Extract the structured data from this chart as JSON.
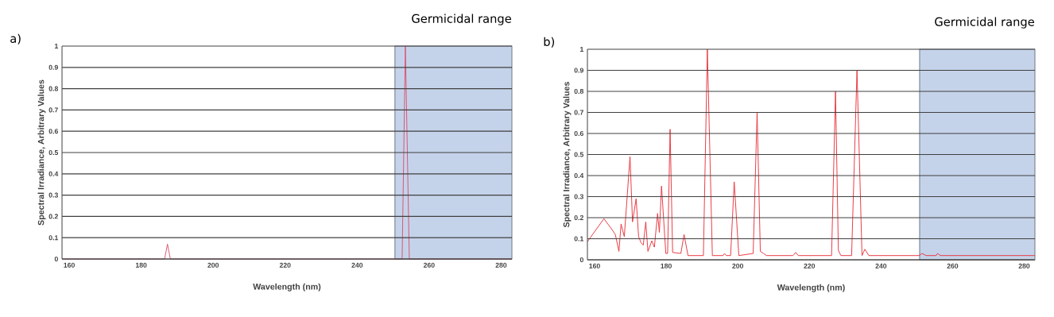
{
  "chart_data": [
    {
      "type": "line",
      "title": "a)",
      "xlabel": "Wavelength (nm)",
      "ylabel": "Spectral Irradiance, Arbitrary Values",
      "series": [
        {
          "color": "#d8506e",
          "x": [
            158,
            186.5,
            187.3,
            188.1,
            252.5,
            253.4,
            254.5,
            283
          ],
          "values": [
            0,
            0,
            0.07,
            0,
            0,
            1,
            0,
            0
          ]
        }
      ],
      "xlim": [
        158,
        283
      ],
      "xticks": [
        160,
        180,
        200,
        220,
        240,
        260,
        280
      ],
      "ylim": [
        0,
        1
      ],
      "yticks": [
        0,
        0.1,
        0.2,
        0.3,
        0.4,
        0.5,
        0.6,
        0.7,
        0.8,
        0.9,
        1
      ],
      "grid": "y",
      "bands": [
        {
          "axis": "x",
          "from": 250.5,
          "to": 283,
          "label": "Germicidal range",
          "color": "#c5d3ea"
        }
      ]
    },
    {
      "type": "line",
      "title": "b)",
      "xlabel": "Wavelength (nm)",
      "ylabel": "Spectral Irradiance, Arbitrary Values",
      "series": [
        {
          "color": "#e8303a",
          "x": [
            158,
            162.6,
            164.6,
            165.8,
            166.8,
            167.4,
            168.3,
            169.9,
            170.6,
            171.6,
            172.3,
            173.0,
            173.6,
            174.3,
            174.9,
            176.0,
            176.7,
            177.6,
            178.1,
            178.7,
            179.9,
            180.4,
            181.1,
            181.8,
            184.1,
            185.0,
            186.1,
            190.4,
            191.5,
            192.9,
            195.9,
            196.3,
            196.8,
            198.0,
            199.0,
            200.3,
            204.3,
            205.4,
            206.3,
            207.2,
            208.0,
            215.4,
            216.2,
            216.9,
            226.2,
            227.3,
            228.1,
            228.8,
            231.8,
            233.3,
            234.7,
            235.5,
            236.6,
            250.6,
            251.5,
            252.6,
            255.4,
            255.8,
            256.6,
            283
          ],
          "values": [
            0.086,
            0.195,
            0.15,
            0.12,
            0.04,
            0.17,
            0.11,
            0.49,
            0.18,
            0.29,
            0.11,
            0.08,
            0.07,
            0.18,
            0.04,
            0.09,
            0.06,
            0.22,
            0.13,
            0.35,
            0.03,
            0.03,
            0.62,
            0.035,
            0.03,
            0.12,
            0.02,
            0.02,
            1,
            0.02,
            0.02,
            0.03,
            0.02,
            0.02,
            0.37,
            0.02,
            0.03,
            0.7,
            0.04,
            0.03,
            0.02,
            0.02,
            0.035,
            0.02,
            0.02,
            0.8,
            0.045,
            0.02,
            0.02,
            0.9,
            0.02,
            0.05,
            0.02,
            0.02,
            0.03,
            0.02,
            0.02,
            0.03,
            0.02,
            0.02
          ]
        }
      ],
      "xlim": [
        158,
        283
      ],
      "xticks": [
        160,
        180,
        200,
        220,
        240,
        260,
        280
      ],
      "ylim": [
        0,
        1
      ],
      "yticks": [
        0,
        0.1,
        0.2,
        0.3,
        0.4,
        0.5,
        0.6,
        0.7,
        0.8,
        0.9,
        1
      ],
      "grid": "y",
      "bands": [
        {
          "axis": "x",
          "from": 250.8,
          "to": 283,
          "label": "Germicidal range",
          "color": "#c5d3ea"
        }
      ]
    }
  ]
}
